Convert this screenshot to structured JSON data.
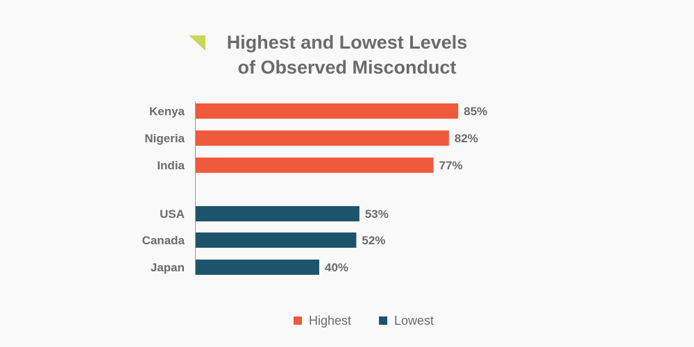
{
  "chart_data": {
    "type": "bar",
    "orientation": "horizontal",
    "title": [
      "Highest and Lowest Levels",
      "of Observed Misconduct"
    ],
    "categories": [
      "Kenya",
      "Nigeria",
      "India",
      "USA",
      "Canada",
      "Japan"
    ],
    "values": [
      85,
      82,
      77,
      53,
      52,
      40
    ],
    "value_labels": [
      "85%",
      "82%",
      "77%",
      "53%",
      "52%",
      "40%"
    ],
    "groups": [
      "Highest",
      "Highest",
      "Highest",
      "Lowest",
      "Lowest",
      "Lowest"
    ],
    "series": [
      {
        "name": "Highest",
        "color": "#f05a3c"
      },
      {
        "name": "Lowest",
        "color": "#1c556b"
      }
    ],
    "xlim": [
      0,
      100
    ],
    "grid": false,
    "legend": "bottom-center"
  },
  "colors": {
    "background": "#f9f9f9",
    "text": "#6b6b6b",
    "axis": "#999999",
    "accent_triangle": "#c8d85a"
  },
  "icons": {
    "title_marker": "triangle-marker-icon"
  }
}
